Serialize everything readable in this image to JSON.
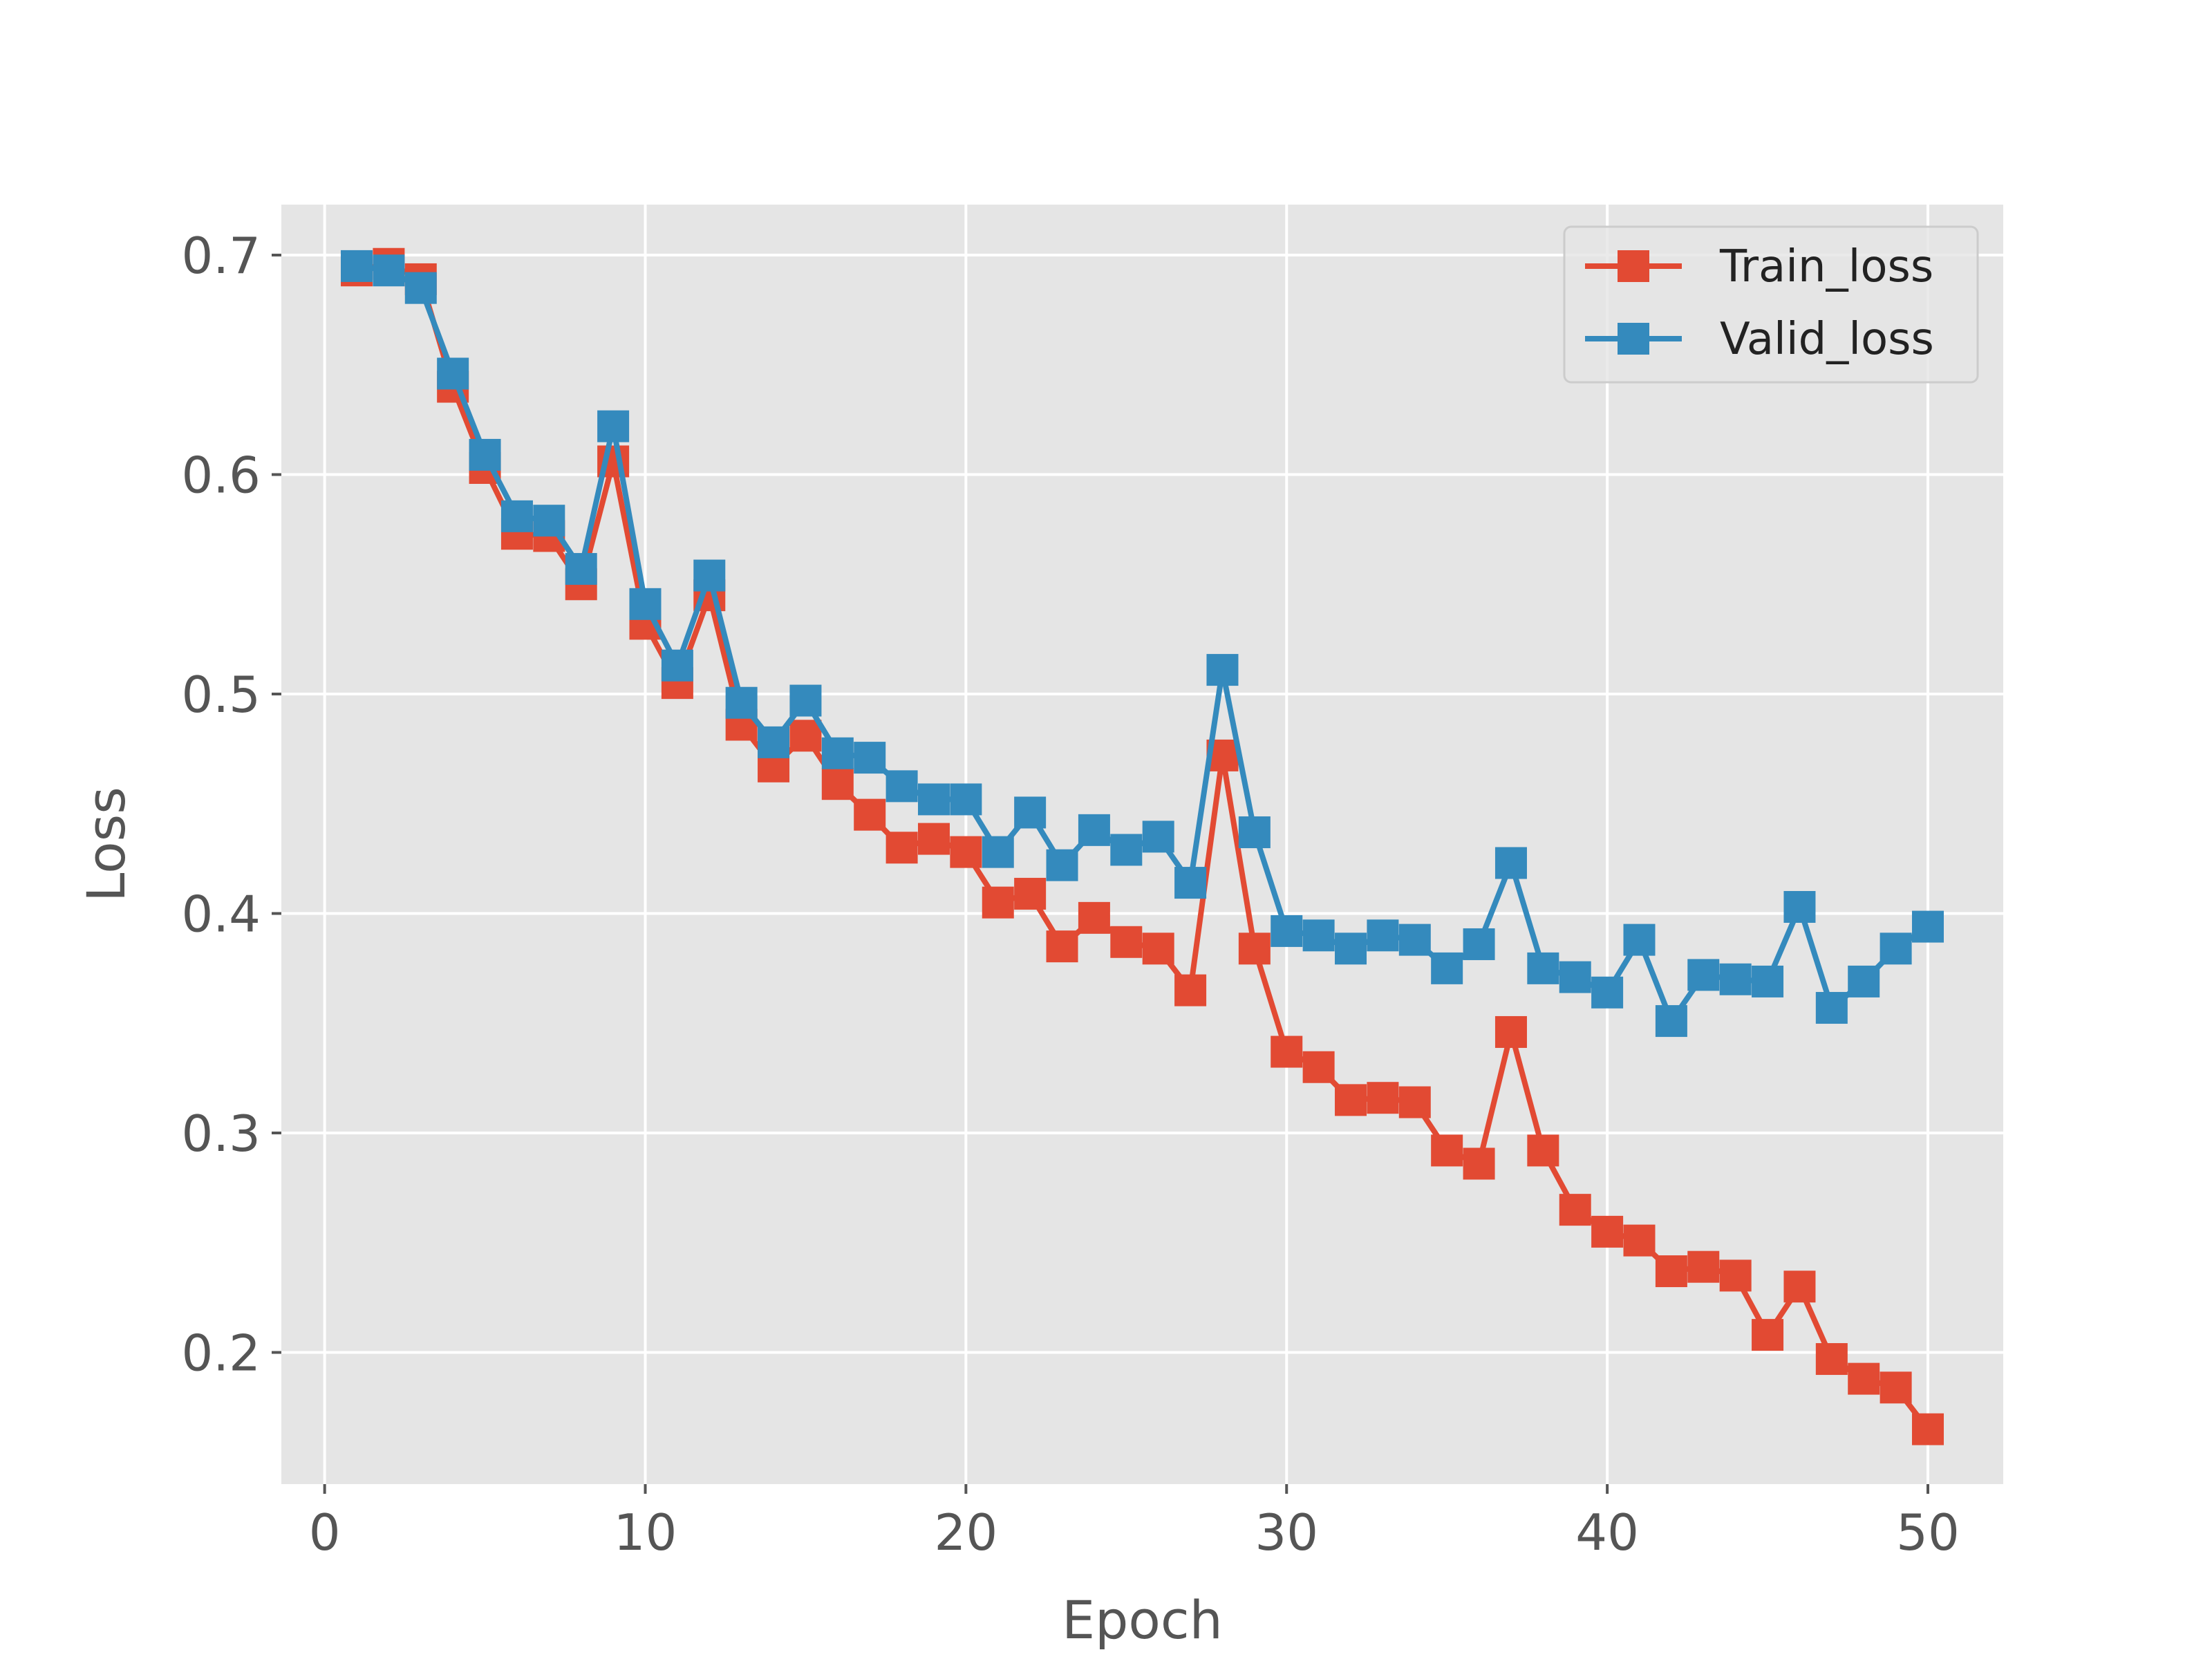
{
  "chart_data": {
    "type": "line",
    "xlabel": "Epoch",
    "ylabel": "Loss",
    "xlim": [
      -1.35,
      52.35
    ],
    "ylim": [
      0.14,
      0.723
    ],
    "xticks": [
      0,
      10,
      20,
      30,
      40,
      50
    ],
    "xtick_labels": [
      "0",
      "10",
      "20",
      "30",
      "40",
      "50"
    ],
    "yticks": [
      0.2,
      0.3,
      0.4,
      0.5,
      0.6,
      0.7
    ],
    "ytick_labels": [
      "0.2",
      "0.3",
      "0.4",
      "0.5",
      "0.6",
      "0.7"
    ],
    "grid": true,
    "legend_position": "top-right",
    "marker": "square",
    "x": [
      1,
      2,
      3,
      4,
      5,
      6,
      7,
      8,
      9,
      10,
      11,
      12,
      13,
      14,
      15,
      16,
      17,
      18,
      19,
      20,
      21,
      22,
      23,
      24,
      25,
      26,
      27,
      28,
      29,
      30,
      31,
      32,
      33,
      34,
      35,
      36,
      37,
      38,
      39,
      40,
      41,
      42,
      43,
      44,
      45,
      46,
      47,
      48,
      49,
      50
    ],
    "series": [
      {
        "name": "Train_loss",
        "color": "#E24A33",
        "values": [
          0.693,
          0.696,
          0.689,
          0.64,
          0.603,
          0.573,
          0.572,
          0.55,
          0.606,
          0.532,
          0.505,
          0.545,
          0.486,
          0.467,
          0.481,
          0.459,
          0.445,
          0.43,
          0.434,
          0.428,
          0.405,
          0.409,
          0.385,
          0.398,
          0.387,
          0.384,
          0.365,
          0.472,
          0.384,
          0.337,
          0.33,
          0.315,
          0.316,
          0.314,
          0.292,
          0.286,
          0.346,
          0.292,
          0.265,
          0.255,
          0.251,
          0.237,
          0.239,
          0.235,
          0.208,
          0.23,
          0.197,
          0.188,
          0.184,
          0.165
        ]
      },
      {
        "name": "Valid_loss",
        "color": "#348ABD",
        "values": [
          0.695,
          0.693,
          0.685,
          0.646,
          0.609,
          0.581,
          0.579,
          0.557,
          0.622,
          0.541,
          0.513,
          0.554,
          0.496,
          0.478,
          0.497,
          0.473,
          0.471,
          0.458,
          0.452,
          0.452,
          0.428,
          0.446,
          0.422,
          0.438,
          0.429,
          0.435,
          0.414,
          0.511,
          0.437,
          0.392,
          0.39,
          0.384,
          0.39,
          0.388,
          0.375,
          0.386,
          0.423,
          0.375,
          0.371,
          0.364,
          0.388,
          0.351,
          0.372,
          0.37,
          0.369,
          0.403,
          0.357,
          0.369,
          0.384,
          0.394
        ]
      }
    ],
    "colors": {
      "plot_background": "#E5E5E5",
      "grid": "#FFFFFF",
      "tick_text": "#555555"
    }
  }
}
